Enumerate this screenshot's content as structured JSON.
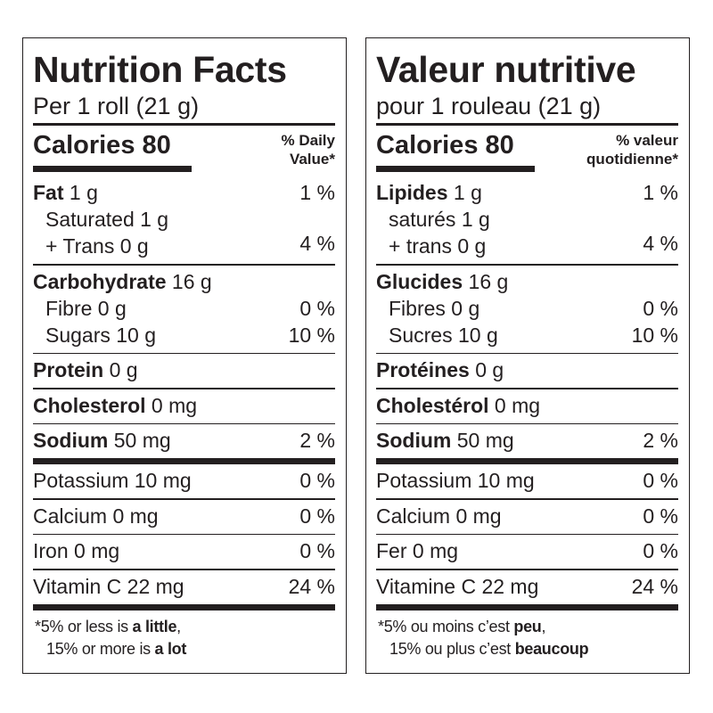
{
  "panels": [
    {
      "id": "en",
      "title": "Nutrition Facts",
      "serving": "Per 1 roll (21 g)",
      "calories": "Calories 80",
      "dv_header": [
        "% Daily",
        "Value*"
      ],
      "groups": [
        {
          "rows": [
            {
              "bold": "Fat",
              "text": " 1 g",
              "dv": "1 %"
            },
            {
              "text": "Saturated 1 g",
              "indent": true
            },
            {
              "text": "+ Trans 0 g",
              "indent": true
            }
          ],
          "group_dv": "4 %",
          "divider": "thin"
        },
        {
          "rows": [
            {
              "bold": "Carbohydrate",
              "text": " 16 g"
            },
            {
              "text": "Fibre 0 g",
              "indent": true,
              "dv": "0 %"
            },
            {
              "text": "Sugars 10 g",
              "indent": true,
              "dv": "10 %"
            }
          ],
          "divider": "thin"
        },
        {
          "rows": [
            {
              "bold": "Protein",
              "text": " 0 g"
            }
          ],
          "divider": "thin"
        },
        {
          "rows": [
            {
              "bold": "Cholesterol",
              "text": " 0 mg"
            }
          ],
          "divider": "thin"
        },
        {
          "rows": [
            {
              "bold": "Sodium",
              "text": " 50 mg",
              "dv": "2 %"
            }
          ],
          "divider": "thick"
        },
        {
          "rows": [
            {
              "text": "Potassium 10 mg",
              "dv": "0 %"
            }
          ],
          "divider": "thin"
        },
        {
          "rows": [
            {
              "text": "Calcium 0 mg",
              "dv": "0 %"
            }
          ],
          "divider": "thin"
        },
        {
          "rows": [
            {
              "text": "Iron 0 mg",
              "dv": "0 %"
            }
          ],
          "divider": "thin"
        },
        {
          "rows": [
            {
              "text": "Vitamin C 22 mg",
              "dv": "24 %"
            }
          ],
          "divider": "thick"
        }
      ],
      "footnote": {
        "l1_a": "*5% or less is ",
        "l1_b": "a little",
        "l1_c": ",",
        "l2_a": "15% or more is ",
        "l2_b": "a lot"
      }
    },
    {
      "id": "fr",
      "title": "Valeur nutritive",
      "serving": "pour 1 rouleau (21 g)",
      "calories": "Calories 80",
      "dv_header": [
        "% valeur",
        "quotidienne*"
      ],
      "groups": [
        {
          "rows": [
            {
              "bold": "Lipides",
              "text": " 1 g",
              "dv": "1 %"
            },
            {
              "text": "saturés 1 g",
              "indent": true
            },
            {
              "text": "+ trans 0 g",
              "indent": true
            }
          ],
          "group_dv": "4 %",
          "divider": "thin"
        },
        {
          "rows": [
            {
              "bold": "Glucides",
              "text": " 16 g"
            },
            {
              "text": "Fibres 0 g",
              "indent": true,
              "dv": "0 %"
            },
            {
              "text": "Sucres 10 g",
              "indent": true,
              "dv": "10 %"
            }
          ],
          "divider": "thin"
        },
        {
          "rows": [
            {
              "bold": "Protéines",
              "text": " 0 g"
            }
          ],
          "divider": "thin"
        },
        {
          "rows": [
            {
              "bold": "Cholestérol",
              "text": " 0 mg"
            }
          ],
          "divider": "thin"
        },
        {
          "rows": [
            {
              "bold": "Sodium",
              "text": " 50 mg",
              "dv": "2 %"
            }
          ],
          "divider": "thick"
        },
        {
          "rows": [
            {
              "text": "Potassium 10 mg",
              "dv": "0 %"
            }
          ],
          "divider": "thin"
        },
        {
          "rows": [
            {
              "text": "Calcium 0 mg",
              "dv": "0 %"
            }
          ],
          "divider": "thin"
        },
        {
          "rows": [
            {
              "text": "Fer 0 mg",
              "dv": "0 %"
            }
          ],
          "divider": "thin"
        },
        {
          "rows": [
            {
              "text": "Vitamine C 22 mg",
              "dv": "24 %"
            }
          ],
          "divider": "thick"
        }
      ],
      "footnote": {
        "l1_a": "*5% ou moins c’est ",
        "l1_b": "peu",
        "l1_c": ",",
        "l2_a": "15% ou plus c’est ",
        "l2_b": "beaucoup"
      }
    }
  ]
}
